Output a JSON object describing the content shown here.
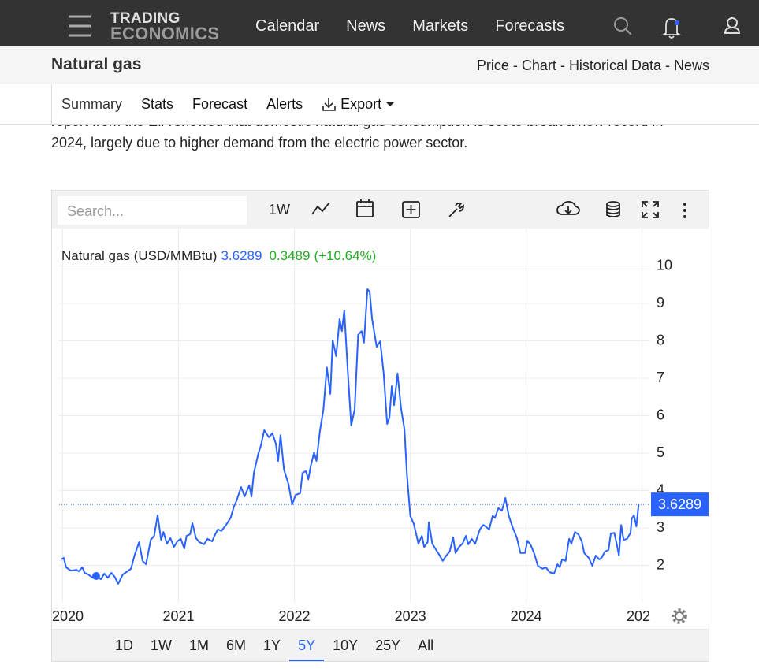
{
  "nav": {
    "logo": [
      "TRADING",
      "ECONOMICS"
    ],
    "links": [
      "Calendar",
      "News",
      "Markets",
      "Forecasts"
    ]
  },
  "header": {
    "title": "Natural gas",
    "links": [
      "Price",
      "Chart",
      "Historical Data",
      "News"
    ],
    "separator": "-"
  },
  "tabs": [
    "Summary",
    "Stats",
    "Forecast",
    "Alerts"
  ],
  "export": "Export",
  "article": {
    "lines": [
      "report from the EIA showed that domestic natural gas consumption is set to break a new record in",
      "2024, largely due to higher demand from the electric power sector."
    ]
  },
  "widget": {
    "search_placeholder": "Search...",
    "interval": "1W",
    "ranges": [
      "1D",
      "1W",
      "1M",
      "6M",
      "1Y",
      "5Y",
      "10Y",
      "25Y",
      "All"
    ],
    "active_range": "5Y"
  },
  "chart_data": {
    "type": "line",
    "x": [
      2019.99,
      2020.01,
      2020.03,
      2020.07,
      2020.12,
      2020.14,
      2020.17,
      2020.19,
      2020.22,
      2020.26,
      2020.29,
      2020.33,
      2020.36,
      2020.39,
      2020.42,
      2020.45,
      2020.48,
      2020.52,
      2020.55,
      2020.59,
      2020.62,
      2020.66,
      2020.69,
      2020.72,
      2020.76,
      2020.79,
      2020.82,
      2020.85,
      2020.87,
      2020.9,
      2020.93,
      2020.96,
      2020.99,
      2021.02,
      2021.05,
      2021.07,
      2021.1,
      2021.12,
      2021.15,
      2021.18,
      2021.22,
      2021.25,
      2021.29,
      2021.31,
      2021.34,
      2021.37,
      2021.41,
      2021.45,
      2021.48,
      2021.5,
      2021.54,
      2021.57,
      2021.61,
      2021.63,
      2021.65,
      2021.69,
      2021.71,
      2021.74,
      2021.78,
      2021.81,
      2021.84,
      2021.86,
      2021.88,
      2021.91,
      2021.95,
      2021.98,
      2022.01,
      2022.05,
      2022.07,
      2022.1,
      2022.12,
      2022.14,
      2022.17,
      2022.19,
      2022.22,
      2022.25,
      2022.28,
      2022.31,
      2022.33,
      2022.36,
      2022.39,
      2022.41,
      2022.43,
      2022.46,
      2022.49,
      2022.52,
      2022.55,
      2022.58,
      2022.6,
      2022.63,
      2022.65,
      2022.67,
      2022.71,
      2022.74,
      2022.77,
      2022.8,
      2022.82,
      2022.84,
      2022.86,
      2022.89,
      2022.92,
      2022.95,
      2022.97,
      2023,
      2023.03,
      2023.07,
      2023.1,
      2023.12,
      2023.15,
      2023.16,
      2023.19,
      2023.22,
      2023.25,
      2023.28,
      2023.31,
      2023.34,
      2023.37,
      2023.39,
      2023.42,
      2023.45,
      2023.48,
      2023.5,
      2023.53,
      2023.56,
      2023.6,
      2023.63,
      2023.65,
      2023.68,
      2023.71,
      2023.73,
      2023.76,
      2023.79,
      2023.82,
      2023.85,
      2023.88,
      2023.92,
      2023.95,
      2023.99,
      2024.01,
      2024.04,
      2024.07,
      2024.1,
      2024.14,
      2024.17,
      2024.2,
      2024.24,
      2024.27,
      2024.29,
      2024.31,
      2024.34,
      2024.37,
      2024.39,
      2024.42,
      2024.45,
      2024.48,
      2024.5,
      2024.54,
      2024.57,
      2024.6,
      2024.63,
      2024.65,
      2024.68,
      2024.71,
      2024.73,
      2024.76,
      2024.78,
      2024.8,
      2024.82,
      2024.84,
      2024.87,
      2024.9,
      2024.91,
      2024.93,
      2024.95,
      2024.97
    ],
    "series": [
      {
        "name": "Natural gas (USD/MMBtu)",
        "color": "#2962ff",
        "values": [
          2.16,
          2.2,
          1.95,
          1.86,
          1.88,
          1.84,
          1.95,
          1.8,
          1.76,
          1.67,
          1.72,
          1.63,
          1.78,
          1.67,
          1.8,
          1.69,
          1.51,
          1.76,
          1.82,
          1.91,
          2.26,
          2.62,
          2.12,
          2.03,
          2.68,
          2.79,
          3.34,
          2.68,
          2.89,
          2.58,
          2.73,
          2.49,
          2.64,
          2.71,
          2.45,
          2.79,
          2.83,
          3.13,
          2.73,
          2.62,
          2.56,
          2.71,
          2.64,
          2.79,
          2.96,
          2.92,
          3.08,
          3.27,
          3.59,
          3.72,
          4.09,
          3.84,
          4.14,
          3.84,
          4.47,
          5,
          5.19,
          5.61,
          5.42,
          5.53,
          5.25,
          4.79,
          5.48,
          4.56,
          4.16,
          3.63,
          3.88,
          3.93,
          4.47,
          4.52,
          4.3,
          4.64,
          5.02,
          4.79,
          5.59,
          6.16,
          7.29,
          6.58,
          8.01,
          7.59,
          8.58,
          8.26,
          8.81,
          7.21,
          5.74,
          6.16,
          8.16,
          8.26,
          7.95,
          9.38,
          9.31,
          8.58,
          7.84,
          7.99,
          7.13,
          5.78,
          5.95,
          6.79,
          6.28,
          7.13,
          6.2,
          5.63,
          4.47,
          3.32,
          3.11,
          2.58,
          2.79,
          2.49,
          2.62,
          3.15,
          2.58,
          2.43,
          2.28,
          2.12,
          2.26,
          2.37,
          2.75,
          2.33,
          2.49,
          2.58,
          2.79,
          2.56,
          2.71,
          2.58,
          2.96,
          3.08,
          3.04,
          2.96,
          3.32,
          3.27,
          3.53,
          3.46,
          3.8,
          3.32,
          3.04,
          2.73,
          2.33,
          2.33,
          2.66,
          2.54,
          2.31,
          1.99,
          1.91,
          1.95,
          1.82,
          1.78,
          2.03,
          1.95,
          2.16,
          2.12,
          2.71,
          2.58,
          2.89,
          2.83,
          2.64,
          2.33,
          2.2,
          1.99,
          2.26,
          2.16,
          2.2,
          2.37,
          2.41,
          2.85,
          2.87,
          2.58,
          2.26,
          3.08,
          2.68,
          2.71,
          2.87,
          3.25,
          3.34,
          3.04,
          3.6289
        ]
      }
    ],
    "change": 0.3489,
    "change_label": "(+10.64%)",
    "change_color": "#22ab22",
    "xlim": [
      2019.97,
      2025.07
    ],
    "xticks": [
      2020,
      2021,
      2022,
      2023,
      2024,
      {
        "value": 2025,
        "label": "202"
      }
    ],
    "ylim": [
      1,
      11
    ],
    "yticks": [
      2,
      3,
      4,
      5,
      6,
      7,
      8,
      9,
      10
    ],
    "grid": true
  }
}
